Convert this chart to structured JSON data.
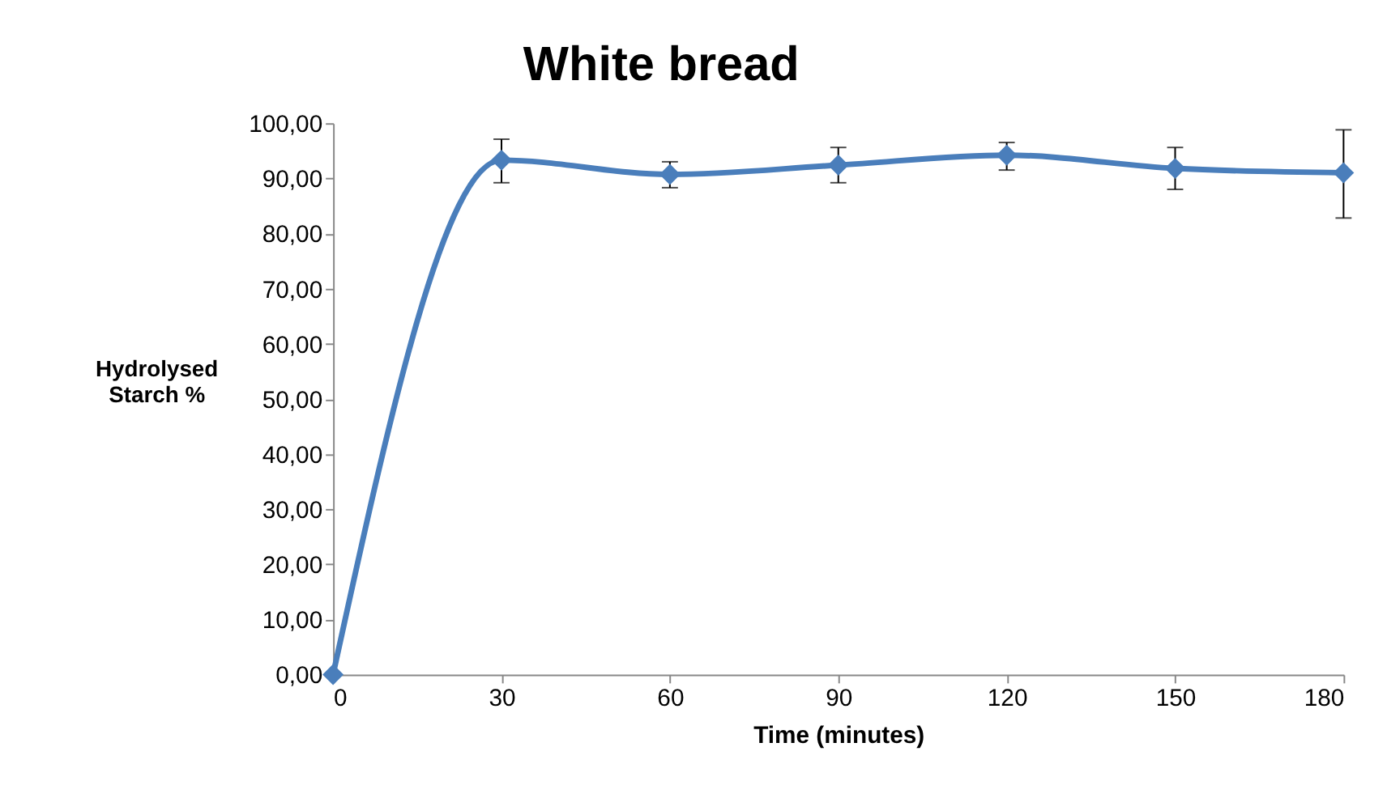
{
  "chart_data": {
    "type": "line",
    "title": "White bread",
    "xlabel": "Time (minutes)",
    "ylabel": "Hydrolysed Starch %",
    "x": [
      0,
      30,
      60,
      90,
      120,
      150,
      180
    ],
    "series": [
      {
        "color": "#4a7ebb",
        "values": [
          0,
          93.3,
          90.7,
          92.4,
          94.2,
          91.8,
          91.0
        ],
        "errors": [
          null,
          [
            89.2,
            97.1
          ],
          [
            88.3,
            93.0
          ],
          [
            89.2,
            95.6
          ],
          [
            91.5,
            96.5
          ],
          [
            88.0,
            95.6
          ],
          [
            82.8,
            98.8
          ]
        ]
      }
    ],
    "xlim": [
      0,
      180
    ],
    "xticks": [
      0,
      30,
      60,
      90,
      120,
      150,
      180
    ],
    "ylim": [
      0,
      100
    ],
    "yticks": [
      {
        "value": 0,
        "label": "0,00"
      },
      {
        "value": 10,
        "label": "10,00"
      },
      {
        "value": 20,
        "label": "20,00"
      },
      {
        "value": 30,
        "label": "30,00"
      },
      {
        "value": 40,
        "label": "40,00"
      },
      {
        "value": 50,
        "label": "50,00"
      },
      {
        "value": 60,
        "label": "60,00"
      },
      {
        "value": 70,
        "label": "70,00"
      },
      {
        "value": 80,
        "label": "80,00"
      },
      {
        "value": 90,
        "label": "90,00"
      },
      {
        "value": 100,
        "label": "100,00"
      }
    ],
    "grid": false,
    "marker": "diamond",
    "line_style": "solid"
  }
}
